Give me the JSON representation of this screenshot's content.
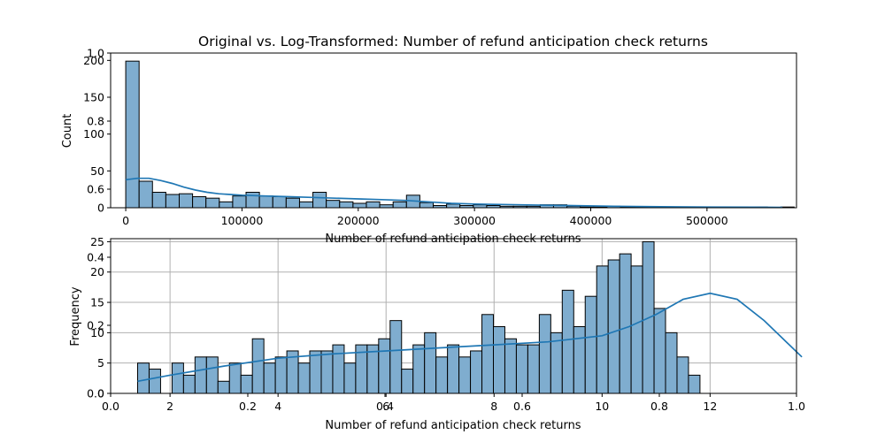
{
  "chart_data": [
    {
      "type": "histogram",
      "title": "Original vs. Log-Transformed: Number of refund anticipation check returns",
      "xlabel": "Number of refund anticipation check returns",
      "ylabel": "Count",
      "xlim": [
        -13000,
        577000
      ],
      "ylim": [
        0,
        210
      ],
      "xticks": [
        0,
        100000,
        200000,
        300000,
        400000,
        500000
      ],
      "yticks": [
        0,
        50,
        100,
        150,
        200
      ],
      "grid": false,
      "bin_start": 0,
      "bin_width": 11500,
      "counts": [
        199,
        36,
        21,
        18,
        19,
        15,
        13,
        8,
        16,
        21,
        16,
        15,
        13,
        8,
        21,
        10,
        8,
        6,
        8,
        4,
        8,
        17,
        7,
        3,
        5,
        3,
        4,
        3,
        2,
        2,
        2,
        4,
        4,
        2,
        1,
        1,
        2,
        1,
        1,
        1,
        1,
        1,
        1,
        0,
        1,
        1,
        1,
        1,
        0,
        1
      ],
      "kde": {
        "x": [
          0,
          10000,
          20000,
          30000,
          40000,
          50000,
          60000,
          70000,
          80000,
          90000,
          100000,
          120000,
          140000,
          160000,
          180000,
          200000,
          220000,
          240000,
          260000,
          280000,
          300000,
          340000,
          380000,
          420000,
          460000,
          500000,
          540000,
          565000
        ],
        "y": [
          38,
          40,
          40,
          37,
          33,
          28,
          24,
          21,
          19,
          18,
          17,
          16,
          15,
          14,
          13,
          12,
          11,
          10,
          8,
          6,
          5,
          4,
          3,
          2,
          1.5,
          1,
          0.7,
          0.5
        ]
      }
    },
    {
      "type": "histogram",
      "title": "",
      "xlabel": "Number of refund anticipation check returns",
      "ylabel": "Frequency",
      "xlim": [
        0.9,
        13.6
      ],
      "ylim": [
        0,
        25.5
      ],
      "xticks": [
        2,
        4,
        6,
        8,
        10,
        12
      ],
      "yticks": [
        0,
        5,
        10,
        15,
        20,
        25
      ],
      "grid": true,
      "bin_start": 1.4,
      "bin_width": 0.2125,
      "counts": [
        5,
        4,
        0,
        5,
        3,
        6,
        6,
        2,
        5,
        3,
        9,
        5,
        6,
        7,
        5,
        7,
        7,
        8,
        5,
        8,
        8,
        9,
        12,
        4,
        8,
        10,
        6,
        8,
        6,
        7,
        13,
        11,
        9,
        8,
        8,
        13,
        10,
        17,
        11,
        16,
        21,
        22,
        23,
        21,
        25,
        14,
        10,
        6,
        3
      ],
      "kde": {
        "x": [
          1.4,
          2.0,
          3.0,
          4.0,
          5.0,
          6.0,
          7.0,
          8.0,
          9.0,
          10.0,
          10.5,
          11.0,
          11.5,
          12.0,
          12.5,
          13.0,
          13.7
        ],
        "y": [
          2,
          3,
          4.5,
          5.8,
          6.5,
          7.0,
          7.5,
          8.0,
          8.5,
          9.5,
          11,
          13,
          15.5,
          16.5,
          15.5,
          12,
          6
        ]
      }
    }
  ],
  "overlay_axes": {
    "xticks": [
      "0.0",
      "0.2",
      "0.4",
      "0.6",
      "0.8",
      "1.0"
    ],
    "yticks": [
      "0.0",
      "0.2",
      "0.4",
      "0.6",
      "0.8",
      "1.0"
    ]
  }
}
